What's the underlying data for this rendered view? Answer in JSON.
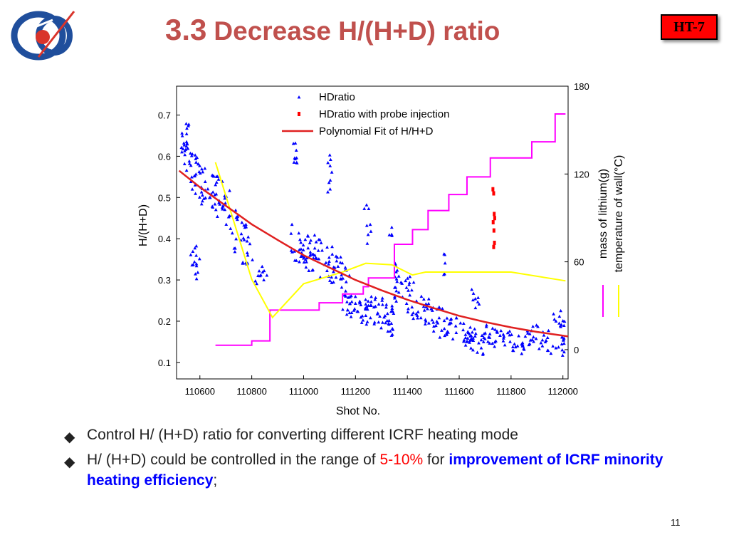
{
  "slide": {
    "title_number": "3.3",
    "title_text": "Decrease H/(H+D) ratio",
    "badge": "HT-7",
    "page_number": "11"
  },
  "bullets": [
    {
      "text": "Control H/ (H+D) ratio for converting different ICRF heating mode"
    },
    {
      "part1": "H/ (H+D)  could be controlled in the range of ",
      "highlight_red": "5-10%",
      "part2": " for ",
      "highlight_blue": "improvement of ICRF minority heating efficiency",
      "part3": ";"
    }
  ],
  "colors": {
    "title": "#c0504d",
    "hdratio": "#0000ff",
    "probe": "#ff0000",
    "fit": "#e02020",
    "lithium": "#ff00ff",
    "wall_temp": "#ffff00"
  },
  "chart_data": {
    "type": "scatter",
    "xlabel": "Shot No.",
    "ylabel": "H/(H+D)",
    "y2label_lines": [
      "mass of lithium(g)",
      "temperature of wall(°C)"
    ],
    "xlim": [
      110510,
      112020
    ],
    "ylim": [
      0.06,
      0.77
    ],
    "y2lim": [
      -20,
      180
    ],
    "x_ticks": [
      110600,
      110800,
      111000,
      111200,
      111400,
      111600,
      111800,
      112000
    ],
    "y_ticks": [
      0.1,
      0.2,
      0.3,
      0.4,
      0.5,
      0.6,
      0.7
    ],
    "y2_ticks": [
      0,
      60,
      120,
      180
    ],
    "grid": false,
    "legend_position": "top-left",
    "legend": [
      {
        "label": "HDratio",
        "marker": "triangle"
      },
      {
        "label": "HDratio with probe injection",
        "marker": "square"
      },
      {
        "label": "Polynomial Fit of H/H+D",
        "marker": "line"
      }
    ],
    "hdratio_segments": [
      {
        "x": [
          110525,
          110560
        ],
        "y": [
          0.62,
          0.65
        ],
        "spread": 0.04,
        "n": 18
      },
      {
        "x": [
          110540,
          110640
        ],
        "y": [
          0.6,
          0.5
        ],
        "spread": 0.05,
        "n": 45
      },
      {
        "x": [
          110560,
          110600
        ],
        "y": [
          0.36,
          0.33
        ],
        "spread": 0.05,
        "n": 14
      },
      {
        "x": [
          110640,
          110720
        ],
        "y": [
          0.52,
          0.47
        ],
        "spread": 0.05,
        "n": 35
      },
      {
        "x": [
          110720,
          110800
        ],
        "y": [
          0.44,
          0.35
        ],
        "spread": 0.06,
        "n": 30
      },
      {
        "x": [
          110800,
          110860
        ],
        "y": [
          0.32,
          0.3
        ],
        "spread": 0.03,
        "n": 12
      },
      {
        "x": [
          110950,
          111000
        ],
        "y": [
          0.4,
          0.36
        ],
        "spread": 0.04,
        "n": 20
      },
      {
        "x": [
          110960,
          110980
        ],
        "y": [
          0.61,
          0.61
        ],
        "spread": 0.03,
        "n": 9
      },
      {
        "x": [
          111000,
          111120
        ],
        "y": [
          0.38,
          0.33
        ],
        "spread": 0.05,
        "n": 50
      },
      {
        "x": [
          111080,
          111110
        ],
        "y": [
          0.56,
          0.56
        ],
        "spread": 0.05,
        "n": 9
      },
      {
        "x": [
          111120,
          111190
        ],
        "y": [
          0.34,
          0.27
        ],
        "spread": 0.04,
        "n": 28
      },
      {
        "x": [
          111150,
          111250
        ],
        "y": [
          0.24,
          0.22
        ],
        "spread": 0.03,
        "n": 35
      },
      {
        "x": [
          111230,
          111260
        ],
        "y": [
          0.46,
          0.4
        ],
        "spread": 0.06,
        "n": 8
      },
      {
        "x": [
          111250,
          111350
        ],
        "y": [
          0.24,
          0.2
        ],
        "spread": 0.04,
        "n": 45
      },
      {
        "x": [
          111330,
          111350
        ],
        "y": [
          0.42,
          0.42
        ],
        "spread": 0.02,
        "n": 4
      },
      {
        "x": [
          111350,
          111450
        ],
        "y": [
          0.3,
          0.24
        ],
        "spread": 0.05,
        "n": 40
      },
      {
        "x": [
          111450,
          111560
        ],
        "y": [
          0.24,
          0.18
        ],
        "spread": 0.04,
        "n": 40
      },
      {
        "x": [
          111540,
          111560
        ],
        "y": [
          0.34,
          0.34
        ],
        "spread": 0.03,
        "n": 5
      },
      {
        "x": [
          111560,
          111700
        ],
        "y": [
          0.19,
          0.14
        ],
        "spread": 0.03,
        "n": 50
      },
      {
        "x": [
          111640,
          111680
        ],
        "y": [
          0.25,
          0.25
        ],
        "spread": 0.03,
        "n": 8
      },
      {
        "x": [
          111700,
          111860
        ],
        "y": [
          0.17,
          0.14
        ],
        "spread": 0.025,
        "n": 45
      },
      {
        "x": [
          111860,
          112010
        ],
        "y": [
          0.17,
          0.14
        ],
        "spread": 0.03,
        "n": 40
      },
      {
        "x": [
          111960,
          112010
        ],
        "y": [
          0.2,
          0.21
        ],
        "spread": 0.02,
        "n": 12
      }
    ],
    "probe_injection": {
      "x": [
        111730,
        111733,
        111735,
        111737,
        111731,
        111734,
        111736,
        111733
      ],
      "y": [
        0.52,
        0.51,
        0.46,
        0.45,
        0.44,
        0.42,
        0.39,
        0.38
      ]
    },
    "fit_line": {
      "x": [
        110520,
        110600,
        110700,
        110800,
        110900,
        111000,
        111100,
        111200,
        111300,
        111400,
        111500,
        111600,
        111700,
        111800,
        111900,
        112000,
        112020
      ],
      "y": [
        0.565,
        0.525,
        0.48,
        0.435,
        0.397,
        0.36,
        0.33,
        0.3,
        0.275,
        0.252,
        0.232,
        0.213,
        0.198,
        0.185,
        0.174,
        0.165,
        0.163
      ]
    },
    "lithium_mass": {
      "x": [
        110660,
        110800,
        110800,
        110870,
        110870,
        111060,
        111060,
        111150,
        111150,
        111230,
        111230,
        111250,
        111250,
        111350,
        111350,
        111420,
        111420,
        111480,
        111480,
        111560,
        111560,
        111630,
        111630,
        111720,
        111720,
        111880,
        111880,
        111970,
        111970,
        112010
      ],
      "y": [
        3,
        3,
        6,
        6,
        27,
        27,
        32,
        32,
        38,
        38,
        43,
        43,
        49,
        49,
        72,
        72,
        82,
        82,
        95,
        95,
        106,
        106,
        118,
        118,
        131,
        131,
        142,
        142,
        161,
        161
      ]
    },
    "wall_temperature": {
      "x": [
        110660,
        110800,
        110880,
        111000,
        111150,
        111240,
        111340,
        111420,
        111470,
        111560,
        111800,
        112010
      ],
      "y": [
        128,
        48,
        22,
        45,
        53,
        59,
        58,
        51,
        53,
        53,
        53,
        47
      ]
    }
  }
}
